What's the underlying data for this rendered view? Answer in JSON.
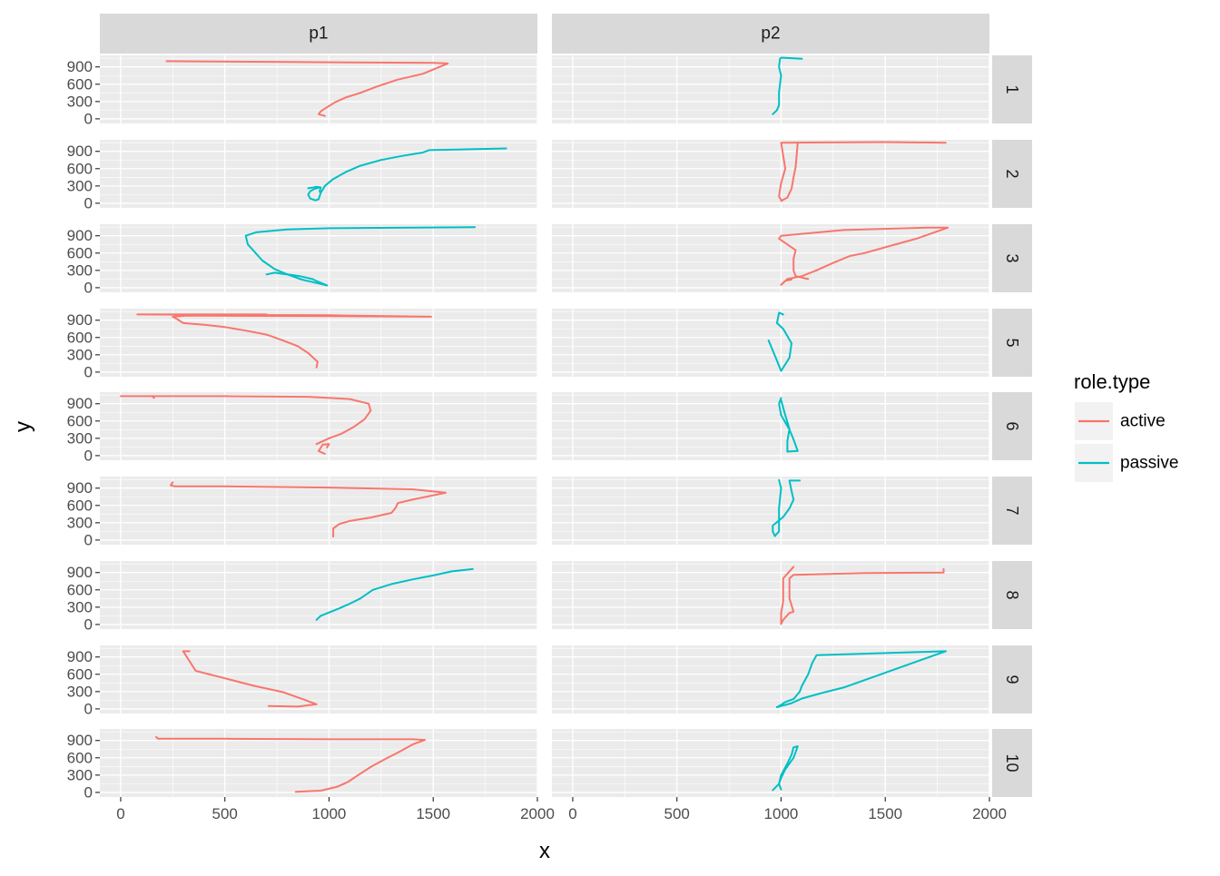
{
  "chart_data": {
    "type": "line",
    "facet_type": "grid",
    "xlabel": "x",
    "ylabel": "y",
    "xlim": [
      -100,
      2000
    ],
    "ylim": [
      -80,
      1100
    ],
    "x_ticks": [
      0,
      500,
      1000,
      1500,
      2000
    ],
    "y_ticks": [
      0,
      300,
      600,
      900
    ],
    "x_tick_labels": [
      "0",
      "500",
      "1000",
      "1500",
      "2000"
    ],
    "y_tick_labels": [
      "0",
      "300",
      "600",
      "900"
    ],
    "columns": [
      "p1",
      "p2"
    ],
    "rows": [
      "1",
      "2",
      "3",
      "5",
      "6",
      "7",
      "8",
      "9",
      "10"
    ],
    "legend": {
      "title": "role.type",
      "position": "right",
      "entries": [
        {
          "name": "active",
          "color": "#F8766D"
        },
        {
          "name": "passive",
          "color": "#00BFC4"
        }
      ]
    },
    "colors": {
      "active": "#F8766D",
      "passive": "#00BFC4",
      "panel_bg": "#EBEBEB",
      "strip_bg": "#D9D9D9",
      "grid": "#FFFFFF"
    },
    "series": [
      {
        "row": "1",
        "col": "p1",
        "role": "active",
        "points": [
          [
            980,
            50
          ],
          [
            950,
            80
          ],
          [
            960,
            130
          ],
          [
            990,
            200
          ],
          [
            1030,
            290
          ],
          [
            1080,
            370
          ],
          [
            1150,
            450
          ],
          [
            1230,
            560
          ],
          [
            1330,
            680
          ],
          [
            1450,
            780
          ],
          [
            1570,
            960
          ],
          [
            1500,
            970
          ],
          [
            800,
            985
          ],
          [
            220,
            1000
          ]
        ]
      },
      {
        "row": "1",
        "col": "p2",
        "role": "passive",
        "points": [
          [
            960,
            80
          ],
          [
            980,
            150
          ],
          [
            990,
            240
          ],
          [
            990,
            330
          ],
          [
            990,
            450
          ],
          [
            995,
            600
          ],
          [
            1000,
            750
          ],
          [
            990,
            900
          ],
          [
            995,
            1040
          ],
          [
            1000,
            1060
          ],
          [
            1100,
            1040
          ]
        ]
      },
      {
        "row": "2",
        "col": "p1",
        "role": "passive",
        "points": [
          [
            950,
            270
          ],
          [
            930,
            250
          ],
          [
            910,
            210
          ],
          [
            900,
            150
          ],
          [
            910,
            80
          ],
          [
            935,
            50
          ],
          [
            950,
            70
          ],
          [
            960,
            180
          ],
          [
            980,
            300
          ],
          [
            1020,
            420
          ],
          [
            1080,
            540
          ],
          [
            1150,
            650
          ],
          [
            1250,
            750
          ],
          [
            1350,
            820
          ],
          [
            1450,
            880
          ],
          [
            1480,
            920
          ],
          [
            1850,
            950
          ]
        ]
      },
      {
        "row": "2",
        "col": "p1",
        "role": "passive",
        "points": [
          [
            900,
            260
          ],
          [
            940,
            285
          ],
          [
            960,
            275
          ],
          [
            955,
            200
          ]
        ]
      },
      {
        "row": "2",
        "col": "p2",
        "role": "active",
        "points": [
          [
            1000,
            40
          ],
          [
            1030,
            100
          ],
          [
            1050,
            250
          ],
          [
            1060,
            450
          ],
          [
            1070,
            630
          ],
          [
            1080,
            1050
          ]
        ]
      },
      {
        "row": "2",
        "col": "p2",
        "role": "active",
        "points": [
          [
            1000,
            60
          ],
          [
            990,
            120
          ],
          [
            1000,
            350
          ],
          [
            1020,
            600
          ],
          [
            1000,
            1050
          ],
          [
            1500,
            1060
          ],
          [
            1790,
            1050
          ]
        ]
      },
      {
        "row": "3",
        "col": "p1",
        "role": "passive",
        "points": [
          [
            990,
            40
          ],
          [
            950,
            100
          ],
          [
            920,
            150
          ],
          [
            860,
            200
          ],
          [
            820,
            220
          ],
          [
            780,
            240
          ],
          [
            740,
            260
          ],
          [
            700,
            230
          ]
        ]
      },
      {
        "row": "3",
        "col": "p1",
        "role": "passive",
        "points": [
          [
            990,
            40
          ],
          [
            930,
            90
          ],
          [
            870,
            140
          ],
          [
            800,
            230
          ],
          [
            740,
            320
          ],
          [
            680,
            470
          ],
          [
            610,
            750
          ],
          [
            600,
            900
          ],
          [
            650,
            960
          ],
          [
            800,
            1010
          ],
          [
            1000,
            1030
          ],
          [
            1400,
            1040
          ],
          [
            1700,
            1050
          ]
        ]
      },
      {
        "row": "3",
        "col": "p2",
        "role": "active",
        "points": [
          [
            1000,
            50
          ],
          [
            1030,
            150
          ],
          [
            1100,
            200
          ],
          [
            1170,
            300
          ],
          [
            1250,
            430
          ],
          [
            1330,
            550
          ],
          [
            1400,
            600
          ],
          [
            1500,
            700
          ],
          [
            1650,
            850
          ],
          [
            1800,
            1040
          ],
          [
            1700,
            1040
          ],
          [
            1300,
            1000
          ],
          [
            1000,
            900
          ],
          [
            990,
            850
          ],
          [
            1070,
            650
          ],
          [
            1060,
            500
          ],
          [
            1060,
            300
          ],
          [
            1070,
            200
          ],
          [
            1130,
            150
          ]
        ]
      },
      {
        "row": "3",
        "col": "p2",
        "role": "active",
        "points": [
          [
            1000,
            50
          ],
          [
            1020,
            120
          ],
          [
            1050,
            140
          ]
        ]
      },
      {
        "row": "5",
        "col": "p1",
        "role": "active",
        "points": [
          [
            940,
            80
          ],
          [
            945,
            180
          ],
          [
            900,
            330
          ],
          [
            850,
            450
          ],
          [
            770,
            560
          ],
          [
            700,
            650
          ],
          [
            600,
            720
          ],
          [
            500,
            780
          ],
          [
            400,
            820
          ],
          [
            300,
            850
          ],
          [
            270,
            920
          ],
          [
            250,
            960
          ],
          [
            320,
            980
          ],
          [
            1000,
            970
          ],
          [
            1490,
            960
          ],
          [
            1000,
            985
          ],
          [
            80,
            1000
          ],
          [
            700,
            1000
          ]
        ]
      },
      {
        "row": "5",
        "col": "p2",
        "role": "passive",
        "points": [
          [
            940,
            550
          ],
          [
            980,
            200
          ],
          [
            1000,
            20
          ],
          [
            1040,
            250
          ],
          [
            1050,
            500
          ],
          [
            1010,
            750
          ],
          [
            980,
            850
          ],
          [
            990,
            1030
          ],
          [
            1010,
            1000
          ]
        ]
      },
      {
        "row": "6",
        "col": "p1",
        "role": "active",
        "points": [
          [
            980,
            30
          ],
          [
            950,
            80
          ],
          [
            970,
            190
          ],
          [
            1000,
            200
          ],
          [
            990,
            140
          ]
        ]
      },
      {
        "row": "6",
        "col": "p1",
        "role": "active",
        "points": [
          [
            940,
            200
          ],
          [
            1000,
            300
          ],
          [
            1060,
            380
          ],
          [
            1120,
            500
          ],
          [
            1170,
            630
          ],
          [
            1200,
            780
          ],
          [
            1190,
            900
          ],
          [
            1100,
            980
          ],
          [
            900,
            1020
          ],
          [
            500,
            1030
          ],
          [
            150,
            1030
          ],
          [
            160,
            1000
          ]
        ]
      },
      {
        "row": "6",
        "col": "p1",
        "role": "active",
        "points": [
          [
            0,
            1030
          ],
          [
            150,
            1030
          ]
        ]
      },
      {
        "row": "6",
        "col": "p2",
        "role": "passive",
        "points": [
          [
            1000,
            1000
          ],
          [
            990,
            900
          ],
          [
            1000,
            700
          ],
          [
            1040,
            450
          ],
          [
            1060,
            280
          ],
          [
            1080,
            80
          ],
          [
            1030,
            70
          ],
          [
            1030,
            250
          ],
          [
            1040,
            460
          ],
          [
            1020,
            700
          ],
          [
            1000,
            960
          ]
        ]
      },
      {
        "row": "7",
        "col": "p1",
        "role": "active",
        "points": [
          [
            1020,
            60
          ],
          [
            1020,
            200
          ],
          [
            1050,
            280
          ],
          [
            1100,
            330
          ],
          [
            1200,
            390
          ],
          [
            1300,
            470
          ],
          [
            1320,
            560
          ],
          [
            1330,
            640
          ],
          [
            1400,
            700
          ],
          [
            1560,
            820
          ],
          [
            1400,
            880
          ],
          [
            1000,
            910
          ],
          [
            500,
            930
          ],
          [
            260,
            930
          ],
          [
            240,
            950
          ],
          [
            250,
            1000
          ]
        ]
      },
      {
        "row": "7",
        "col": "p2",
        "role": "passive",
        "points": [
          [
            970,
            70
          ],
          [
            960,
            150
          ],
          [
            960,
            250
          ],
          [
            1010,
            400
          ],
          [
            1040,
            550
          ],
          [
            1060,
            700
          ],
          [
            1050,
            850
          ],
          [
            1040,
            1030
          ],
          [
            1090,
            1030
          ]
        ]
      },
      {
        "row": "7",
        "col": "p2",
        "role": "passive",
        "points": [
          [
            970,
            70
          ],
          [
            990,
            150
          ],
          [
            990,
            550
          ],
          [
            1000,
            900
          ],
          [
            990,
            1040
          ]
        ]
      },
      {
        "row": "8",
        "col": "p1",
        "role": "passive",
        "points": [
          [
            940,
            80
          ],
          [
            960,
            150
          ],
          [
            1050,
            280
          ],
          [
            1100,
            360
          ],
          [
            1150,
            450
          ],
          [
            1210,
            600
          ],
          [
            1300,
            700
          ],
          [
            1400,
            780
          ],
          [
            1500,
            850
          ],
          [
            1590,
            920
          ],
          [
            1690,
            960
          ]
        ]
      },
      {
        "row": "8",
        "col": "p2",
        "role": "active",
        "points": [
          [
            1000,
            10
          ],
          [
            1010,
            80
          ],
          [
            1040,
            200
          ],
          [
            1060,
            220
          ],
          [
            1040,
            450
          ],
          [
            1040,
            800
          ],
          [
            1060,
            860
          ],
          [
            1400,
            890
          ],
          [
            1780,
            900
          ],
          [
            1780,
            960
          ]
        ]
      },
      {
        "row": "8",
        "col": "p2",
        "role": "active",
        "points": [
          [
            1000,
            10
          ],
          [
            1000,
            200
          ],
          [
            1010,
            400
          ],
          [
            1010,
            800
          ],
          [
            1060,
            1000
          ]
        ]
      },
      {
        "row": "9",
        "col": "p1",
        "role": "active",
        "points": [
          [
            710,
            50
          ],
          [
            850,
            40
          ],
          [
            940,
            80
          ],
          [
            880,
            160
          ],
          [
            780,
            290
          ],
          [
            640,
            400
          ],
          [
            500,
            530
          ],
          [
            360,
            660
          ],
          [
            300,
            1000
          ],
          [
            330,
            1000
          ]
        ]
      },
      {
        "row": "9",
        "col": "p2",
        "role": "passive",
        "points": [
          [
            980,
            30
          ],
          [
            1000,
            70
          ],
          [
            1020,
            120
          ],
          [
            1060,
            170
          ],
          [
            1090,
            300
          ],
          [
            1100,
            400
          ],
          [
            1130,
            600
          ],
          [
            1150,
            800
          ],
          [
            1170,
            930
          ],
          [
            1790,
            1000
          ]
        ]
      },
      {
        "row": "9",
        "col": "p2",
        "role": "passive",
        "points": [
          [
            980,
            30
          ],
          [
            1050,
            100
          ],
          [
            1100,
            180
          ],
          [
            1200,
            280
          ],
          [
            1300,
            370
          ],
          [
            1790,
            1000
          ]
        ]
      },
      {
        "row": "10",
        "col": "p1",
        "role": "active",
        "points": [
          [
            840,
            10
          ],
          [
            900,
            20
          ],
          [
            960,
            30
          ],
          [
            1040,
            100
          ],
          [
            1090,
            180
          ],
          [
            1140,
            300
          ],
          [
            1200,
            440
          ],
          [
            1270,
            580
          ],
          [
            1330,
            690
          ],
          [
            1400,
            830
          ],
          [
            1460,
            910
          ],
          [
            1400,
            920
          ],
          [
            1000,
            920
          ],
          [
            500,
            930
          ],
          [
            180,
            930
          ],
          [
            170,
            960
          ]
        ]
      },
      {
        "row": "10",
        "col": "p2",
        "role": "passive",
        "points": [
          [
            960,
            40
          ],
          [
            990,
            150
          ],
          [
            1000,
            300
          ],
          [
            1030,
            500
          ],
          [
            1050,
            650
          ],
          [
            1060,
            780
          ],
          [
            1080,
            800
          ],
          [
            1060,
            600
          ],
          [
            1020,
            400
          ],
          [
            1000,
            250
          ],
          [
            990,
            150
          ],
          [
            1000,
            50
          ]
        ]
      }
    ]
  }
}
